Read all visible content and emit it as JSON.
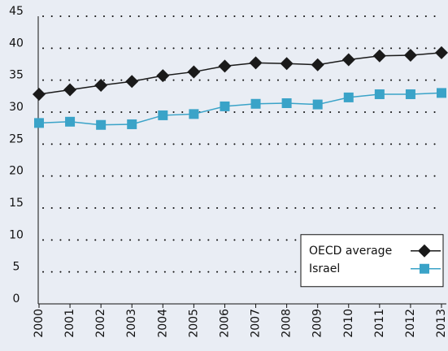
{
  "chart_data": {
    "type": "line",
    "x": [
      2000,
      2001,
      2002,
      2003,
      2004,
      2005,
      2006,
      2007,
      2008,
      2009,
      2010,
      2011,
      2012,
      2013
    ],
    "xlim": [
      2000,
      2013
    ],
    "ylim": [
      0,
      45
    ],
    "yticks": [
      0,
      5,
      10,
      15,
      20,
      25,
      30,
      35,
      40,
      45
    ],
    "grid": true,
    "legend": "lower right",
    "series": [
      {
        "name": "OECD average",
        "color": "#1a1a1a",
        "marker": "diamond",
        "values": [
          32.8,
          33.5,
          34.2,
          34.8,
          35.7,
          36.3,
          37.2,
          37.7,
          37.6,
          37.4,
          38.2,
          38.8,
          38.9,
          39.3
        ]
      },
      {
        "name": "Israel",
        "color": "#3aa3c8",
        "marker": "square",
        "values": [
          28.3,
          28.5,
          28.0,
          28.1,
          29.5,
          29.7,
          30.9,
          31.3,
          31.4,
          31.2,
          32.3,
          32.8,
          32.8,
          33.0
        ]
      }
    ]
  }
}
